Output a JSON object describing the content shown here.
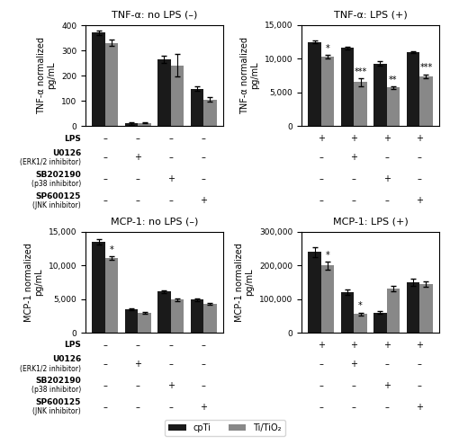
{
  "chart_data": [
    {
      "type": "bar",
      "title": "TNF-α: no LPS (–)",
      "y_label": "TNF-α normalized\npg/mL",
      "categories": [
        null,
        null,
        null,
        null
      ],
      "tick_labels": "y",
      "ylim": [
        0,
        400
      ],
      "yticks": [
        0,
        100,
        200,
        300,
        400
      ],
      "series": [
        {
          "name": "cpTi",
          "color": "#1a1a1a",
          "values": [
            370,
            10,
            265,
            148
          ],
          "errors": [
            10,
            5,
            15,
            10
          ]
        },
        {
          "name": "Ti/TiO₂",
          "color": "#888888",
          "values": [
            330,
            12,
            240,
            105
          ],
          "errors": [
            12,
            3,
            45,
            8
          ]
        }
      ],
      "condition_signs": [
        [
          "–",
          "–",
          "–",
          "–"
        ],
        [
          "–",
          "+",
          "–",
          "–"
        ],
        [
          "–",
          "–",
          "+",
          "–"
        ],
        [
          "–",
          "–",
          "–",
          "+"
        ]
      ]
    },
    {
      "type": "bar",
      "title": "TNF-α: LPS (+)",
      "y_label": "TNF-α normalized\npg/mL",
      "categories": [
        null,
        null,
        null,
        null
      ],
      "tick_labels": "y",
      "ylim": [
        0,
        15000
      ],
      "yticks": [
        0,
        {
          "value": 5000,
          "label": "5,000"
        },
        {
          "value": 10000,
          "label": "10,000"
        },
        {
          "value": 15000,
          "label": "15,000"
        }
      ],
      "series": [
        {
          "name": "cpTi",
          "color": "#1a1a1a",
          "values": [
            12500,
            11600,
            9300,
            11000
          ],
          "errors": [
            200,
            200,
            350,
            150
          ]
        },
        {
          "name": "Ti/TiO₂",
          "color": "#888888",
          "values": [
            10300,
            6500,
            5700,
            7400
          ],
          "errors": [
            300,
            600,
            200,
            300
          ]
        }
      ],
      "annotations": [
        {
          "text": "*",
          "series": "Ti/TiO₂",
          "category": 0
        },
        {
          "text": "***",
          "series": "Ti/TiO₂",
          "category": 1
        },
        {
          "text": "**",
          "series": "Ti/TiO₂",
          "category": 2
        },
        {
          "text": "***",
          "series": "Ti/TiO₂",
          "category": 3
        }
      ],
      "condition_signs": [
        [
          "+",
          "+",
          "+",
          "+"
        ],
        [
          "–",
          "+",
          "–",
          "–"
        ],
        [
          "–",
          "–",
          "+",
          "–"
        ],
        [
          "–",
          "–",
          "–",
          "+"
        ]
      ]
    },
    {
      "type": "bar",
      "title": "MCP-1: no LPS (–)",
      "y_label": "MCP-1 normalized\npg/mL",
      "categories": [
        null,
        null,
        null,
        null
      ],
      "tick_labels": "y",
      "ylim": [
        0,
        15000
      ],
      "yticks": [
        0,
        {
          "value": 5000,
          "label": "5,000"
        },
        {
          "value": 10000,
          "label": "10,000"
        },
        {
          "value": 15000,
          "label": "15,000"
        }
      ],
      "series": [
        {
          "name": "cpTi",
          "color": "#1a1a1a",
          "values": [
            13500,
            3500,
            6100,
            4900
          ],
          "errors": [
            400,
            150,
            200,
            150
          ]
        },
        {
          "name": "Ti/TiO₂",
          "color": "#888888",
          "values": [
            11100,
            2900,
            4900,
            4300
          ],
          "errors": [
            300,
            150,
            200,
            100
          ]
        }
      ],
      "annotations": [
        {
          "text": "*",
          "series": "Ti/TiO₂",
          "category": 0
        }
      ],
      "condition_signs": [
        [
          "–",
          "–",
          "–",
          "–"
        ],
        [
          "–",
          "+",
          "–",
          "–"
        ],
        [
          "–",
          "–",
          "+",
          "–"
        ],
        [
          "–",
          "–",
          "–",
          "+"
        ]
      ]
    },
    {
      "type": "bar",
      "title": "MCP-1: LPS (+)",
      "y_label": "MCP-1 normalized\npg/mL",
      "categories": [
        null,
        null,
        null,
        null
      ],
      "tick_labels": "y",
      "ylim": [
        0,
        300000
      ],
      "yticks": [
        0,
        {
          "value": 100000,
          "label": "100,000"
        },
        {
          "value": 200000,
          "label": "200,000"
        },
        {
          "value": 300000,
          "label": "300,000"
        }
      ],
      "series": [
        {
          "name": "cpTi",
          "color": "#1a1a1a",
          "values": [
            240000,
            120000,
            60000,
            150000
          ],
          "errors": [
            15000,
            8000,
            5000,
            10000
          ]
        },
        {
          "name": "Ti/TiO₂",
          "color": "#888888",
          "values": [
            200000,
            55000,
            130000,
            145000
          ],
          "errors": [
            12000,
            5000,
            8000,
            8000
          ]
        }
      ],
      "annotations": [
        {
          "text": "*",
          "series": "Ti/TiO₂",
          "category": 0
        },
        {
          "text": "*",
          "series": "Ti/TiO₂",
          "category": 1
        }
      ],
      "condition_signs": [
        [
          "+",
          "+",
          "+",
          "+"
        ],
        [
          "–",
          "+",
          "–",
          "–"
        ],
        [
          "–",
          "–",
          "+",
          "–"
        ],
        [
          "–",
          "–",
          "–",
          "+"
        ]
      ]
    }
  ],
  "condition_rows": [
    {
      "label": "LPS"
    },
    {
      "label": "U0126",
      "note": "(ERK1/2 inhibitor)"
    },
    {
      "label": "SB202190",
      "note": "(p38 inhibitor)"
    },
    {
      "label": "SP600125",
      "note": "(JNK inhibitor)"
    }
  ],
  "legend": "lower center"
}
